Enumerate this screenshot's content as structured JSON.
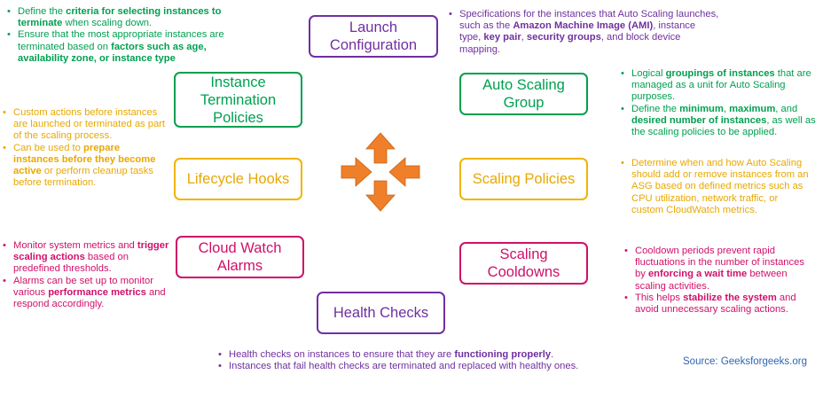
{
  "boxes": {
    "launch": "Launch Configuration",
    "termination": "Instance Termination Policies",
    "autoscaling": "Auto Scaling Group",
    "lifecycle": "Lifecycle Hooks",
    "policies": "Scaling Policies",
    "cloudwatch": "Cloud Watch Alarms",
    "cooldowns": "Scaling Cooldowns",
    "health": "Health Checks"
  },
  "notes": {
    "termination": [
      [
        {
          "t": "Define the "
        },
        {
          "t": "criteria for selecting instances to terminate",
          "b": true
        },
        {
          "t": " when scaling down."
        }
      ],
      [
        {
          "t": "Ensure that the most appropriate instances are terminated based on "
        },
        {
          "t": "factors such as age, availability zone, or instance type",
          "b": true
        }
      ]
    ],
    "launch": [
      [
        {
          "t": "Specifications for the instances that Auto Scaling launches, such as the "
        },
        {
          "t": "Amazon Machine Image (AMI)",
          "b": true
        },
        {
          "t": ", instance type, "
        },
        {
          "t": "key pair",
          "b": true
        },
        {
          "t": ", "
        },
        {
          "t": "security groups",
          "b": true
        },
        {
          "t": ", and block device mapping."
        }
      ]
    ],
    "autoscaling": [
      [
        {
          "t": "Logical "
        },
        {
          "t": "groupings of instances",
          "b": true
        },
        {
          "t": " that are managed as a unit for Auto Scaling purposes."
        }
      ],
      [
        {
          "t": "Define the "
        },
        {
          "t": "minimum",
          "b": true
        },
        {
          "t": ", "
        },
        {
          "t": "maximum",
          "b": true
        },
        {
          "t": ", and "
        },
        {
          "t": "desired number of instances",
          "b": true
        },
        {
          "t": ", as well as the scaling policies to be applied."
        }
      ]
    ],
    "lifecycle": [
      [
        {
          "t": "Custom actions before instances are launched or terminated as part of the scaling process."
        }
      ],
      [
        {
          "t": "Can be used to "
        },
        {
          "t": "prepare instances before they become active",
          "b": true
        },
        {
          "t": " or perform cleanup tasks before termination."
        }
      ]
    ],
    "policies": [
      [
        {
          "t": "Determine when and how Auto Scaling should add or remove instances from an ASG based on defined metrics such as CPU utilization, network traffic, or custom CloudWatch metrics."
        }
      ]
    ],
    "cloudwatch": [
      [
        {
          "t": "Monitor system metrics and "
        },
        {
          "t": "trigger scaling actions",
          "b": true
        },
        {
          "t": " based on predefined thresholds."
        }
      ],
      [
        {
          "t": "Alarms can be set up to monitor various "
        },
        {
          "t": "performance metrics",
          "b": true
        },
        {
          "t": " and respond accordingly."
        }
      ]
    ],
    "cooldowns": [
      [
        {
          "t": "Cooldown periods prevent rapid fluctuations in the number of instances by "
        },
        {
          "t": "enforcing a wait time",
          "b": true
        },
        {
          "t": " between scaling activities."
        }
      ],
      [
        {
          "t": "This helps "
        },
        {
          "t": "stabilize the system",
          "b": true
        },
        {
          "t": " and avoid unnecessary scaling actions."
        }
      ]
    ],
    "health": [
      [
        {
          "t": "Health checks on instances to ensure that they are "
        },
        {
          "t": "functioning properly",
          "b": true
        },
        {
          "t": "."
        }
      ],
      [
        {
          "t": "Instances that fail health checks are terminated and replaced with healthy ones."
        }
      ]
    ]
  },
  "source": "Source: Geeksforgeeks.org",
  "colors": {
    "purple": "#7030a0",
    "green": "#00a050",
    "yellow": "#e8a800",
    "pink": "#d0106a",
    "arrow": "#f07f2a",
    "source": "#2f66b0"
  },
  "icon": "scaling-arrows-icon"
}
